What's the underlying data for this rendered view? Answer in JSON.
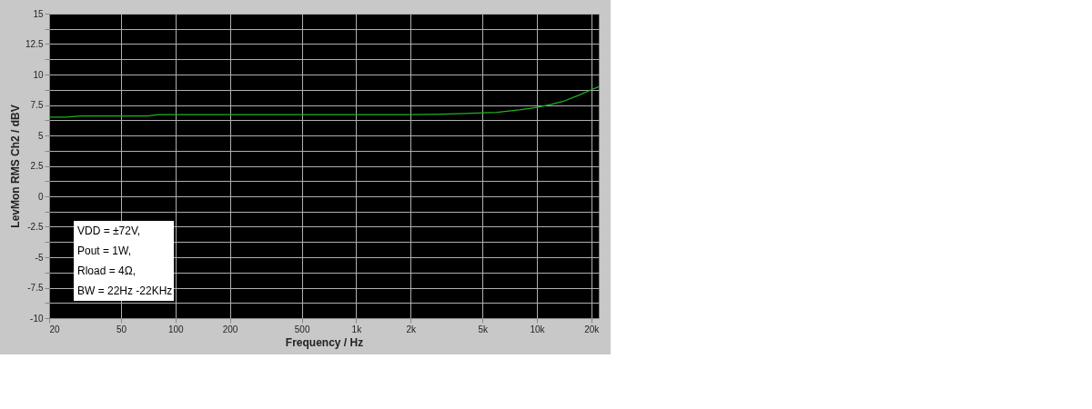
{
  "chart_data": {
    "type": "line",
    "xlabel": "Frequency / Hz",
    "ylabel": "LevMon RMS Ch2 / dBV",
    "x": [
      20,
      25,
      30,
      40,
      50,
      70,
      80,
      100,
      200,
      500,
      1000,
      2000,
      3000,
      4000,
      5000,
      6000,
      7000,
      8000,
      10000,
      12000,
      14000,
      17000,
      20000,
      22000
    ],
    "series": [
      {
        "color": "#22b022",
        "values": [
          6.5,
          6.5,
          6.6,
          6.6,
          6.6,
          6.6,
          6.7,
          6.7,
          6.7,
          6.7,
          6.7,
          6.7,
          6.75,
          6.8,
          6.85,
          6.9,
          7.0,
          7.1,
          7.3,
          7.55,
          7.8,
          8.3,
          8.75,
          9.0
        ]
      }
    ],
    "log": "x",
    "xlim": [
      20,
      22000
    ],
    "xticks": [
      20,
      50,
      100,
      200,
      500,
      {
        "value": 1000,
        "label": "1k"
      },
      {
        "value": 2000,
        "label": "2k"
      },
      {
        "value": 5000,
        "label": "5k"
      },
      {
        "value": 10000,
        "label": "10k"
      },
      {
        "value": 20000,
        "label": "20k"
      }
    ],
    "ylim": [
      -10,
      15
    ],
    "yticks": [
      -10,
      {
        "value": -8.75,
        "label": null
      },
      -7.5,
      {
        "value": -6.25,
        "label": null
      },
      -5,
      {
        "value": -3.75,
        "label": null
      },
      -2.5,
      {
        "value": -1.25,
        "label": null
      },
      0,
      {
        "value": 1.25,
        "label": null
      },
      2.5,
      {
        "value": 3.75,
        "label": null
      },
      5,
      {
        "value": 6.25,
        "label": null
      },
      7.5,
      {
        "value": 8.75,
        "label": null
      },
      10,
      {
        "value": 11.25,
        "label": null
      },
      12.5,
      {
        "value": 13.75,
        "label": null
      },
      15
    ],
    "grid": true,
    "marker": "none",
    "line_style": "solid",
    "annotations": [
      "VDD = ±72V,",
      "Pout = 1W,",
      "Rload = 4Ω,",
      "BW = 22Hz -22KHz"
    ]
  }
}
